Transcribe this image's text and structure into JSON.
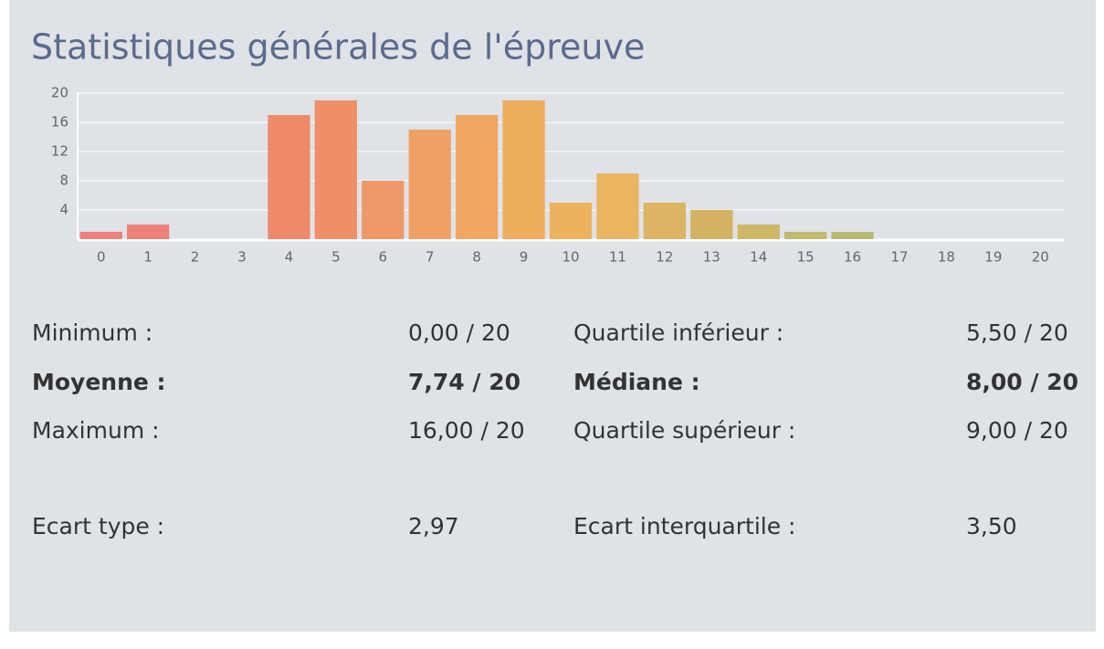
{
  "chart_data": {
    "type": "bar",
    "title": "Statistiques générales de l'épreuve",
    "categories": [
      "0",
      "1",
      "2",
      "3",
      "4",
      "5",
      "6",
      "7",
      "8",
      "9",
      "10",
      "11",
      "12",
      "13",
      "14",
      "15",
      "16",
      "17",
      "18",
      "19",
      "20"
    ],
    "values": [
      1,
      2,
      0,
      0,
      17,
      19,
      8,
      15,
      17,
      19,
      5,
      9,
      5,
      4,
      2,
      1,
      1,
      0,
      0,
      0,
      0
    ],
    "colors": [
      "#ef7f7f",
      "#ef8078",
      "#ee8470",
      "#ee876c",
      "#ee8a6a",
      "#ee8f68",
      "#ef9868",
      "#efa064",
      "#efa762",
      "#efae5e",
      "#eeb25e",
      "#e9b560",
      "#ddb462",
      "#d4b463",
      "#ccb866",
      "#c2b86e",
      "#b9b974",
      "#b0b97a",
      "#a8b980",
      "#a0b985",
      "#98b98a"
    ],
    "ylim": [
      0,
      20
    ],
    "yticks": [
      4,
      8,
      12,
      16,
      20
    ],
    "grid": true
  },
  "stats": [
    [
      "Minimum :",
      "0,00 / 20",
      "Quartile inférieur :",
      "5,50 / 20"
    ],
    [
      "Moyenne :",
      "7,74 / 20",
      "Médiane :",
      "8,00 / 20"
    ],
    [
      "Maximum :",
      "16,00 / 20",
      "Quartile supérieur :",
      "9,00 / 20"
    ],
    [
      "Ecart type :",
      "2,97",
      "Ecart interquartile :",
      "3,50"
    ]
  ]
}
